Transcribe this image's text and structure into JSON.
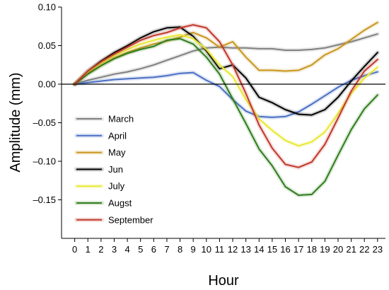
{
  "chart_data": {
    "type": "line",
    "xlabel": "Hour",
    "ylabel": "Amplitude (mm)",
    "xlim": [
      -1,
      23.6
    ],
    "ylim": [
      -0.2,
      0.1
    ],
    "x_ticks": [
      0,
      1,
      2,
      3,
      4,
      5,
      6,
      7,
      8,
      9,
      10,
      11,
      12,
      13,
      14,
      15,
      16,
      17,
      18,
      19,
      20,
      21,
      22,
      23
    ],
    "y_ticks": [
      0.1,
      0.05,
      0.0,
      -0.05,
      -0.1,
      -0.15
    ],
    "y_tick_labels": [
      "0.10",
      "0.05",
      "0.00",
      "–0.05",
      "–0.10",
      "–0.15"
    ],
    "zero_line": true,
    "grid": false,
    "legend_position": "left-center",
    "x": [
      0,
      1,
      2,
      3,
      4,
      5,
      6,
      7,
      8,
      9,
      10,
      11,
      12,
      13,
      14,
      15,
      16,
      17,
      18,
      19,
      20,
      21,
      22,
      23
    ],
    "series": [
      {
        "name": "March",
        "color": "#808080",
        "values": [
          0.0,
          0.005,
          0.009,
          0.013,
          0.016,
          0.02,
          0.025,
          0.031,
          0.037,
          0.043,
          0.047,
          0.048,
          0.047,
          0.047,
          0.046,
          0.046,
          0.044,
          0.044,
          0.045,
          0.047,
          0.051,
          0.055,
          0.06,
          0.065
        ]
      },
      {
        "name": "April",
        "color": "#4a6fc4",
        "values": [
          0.0,
          0.002,
          0.004,
          0.006,
          0.007,
          0.008,
          0.009,
          0.011,
          0.014,
          0.015,
          0.005,
          -0.003,
          -0.02,
          -0.035,
          -0.042,
          -0.043,
          -0.042,
          -0.036,
          -0.026,
          -0.015,
          -0.004,
          0.005,
          0.011,
          0.016
        ]
      },
      {
        "name": "May",
        "color": "#c8961e",
        "values": [
          0.0,
          0.014,
          0.024,
          0.034,
          0.041,
          0.047,
          0.052,
          0.056,
          0.061,
          0.067,
          0.06,
          0.048,
          0.055,
          0.035,
          0.018,
          0.018,
          0.017,
          0.018,
          0.025,
          0.038,
          0.046,
          0.058,
          0.07,
          0.08
        ]
      },
      {
        "name": "Jun",
        "color": "#000000",
        "values": [
          0.0,
          0.017,
          0.03,
          0.041,
          0.05,
          0.06,
          0.068,
          0.073,
          0.074,
          0.062,
          0.043,
          0.02,
          0.025,
          0.008,
          -0.017,
          -0.024,
          -0.033,
          -0.039,
          -0.04,
          -0.033,
          -0.017,
          0.004,
          0.023,
          0.041
        ]
      },
      {
        "name": "July",
        "color": "#e8e830",
        "values": [
          0.0,
          0.016,
          0.027,
          0.037,
          0.045,
          0.052,
          0.057,
          0.061,
          0.064,
          0.059,
          0.045,
          0.025,
          0.01,
          -0.02,
          -0.045,
          -0.06,
          -0.073,
          -0.08,
          -0.075,
          -0.062,
          -0.038,
          -0.012,
          0.008,
          0.022
        ]
      },
      {
        "name": "Augst",
        "color": "#2e7d1a",
        "values": [
          0.0,
          0.013,
          0.024,
          0.033,
          0.04,
          0.045,
          0.049,
          0.057,
          0.059,
          0.052,
          0.035,
          0.013,
          -0.019,
          -0.051,
          -0.084,
          -0.106,
          -0.133,
          -0.144,
          -0.143,
          -0.126,
          -0.092,
          -0.059,
          -0.032,
          -0.014
        ]
      },
      {
        "name": "September",
        "color": "#c0392b",
        "values": [
          0.0,
          0.017,
          0.029,
          0.039,
          0.048,
          0.057,
          0.063,
          0.067,
          0.073,
          0.077,
          0.073,
          0.055,
          0.025,
          -0.012,
          -0.053,
          -0.083,
          -0.104,
          -0.108,
          -0.101,
          -0.078,
          -0.044,
          -0.009,
          0.017,
          0.032
        ]
      }
    ]
  }
}
